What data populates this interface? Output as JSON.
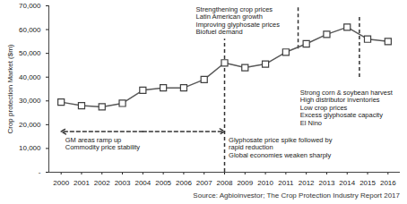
{
  "chart_data": {
    "type": "line",
    "y_label": "Crop protection Market ($m)",
    "caption": "Source: Agbioinvestor; The Crop Protection Industry Report 2017",
    "categories": [
      "2000",
      "2001",
      "2002",
      "2003",
      "2004",
      "2005",
      "2006",
      "2007",
      "2008",
      "2009",
      "2010",
      "2011",
      "2012",
      "2013",
      "2014",
      "2015",
      "2016"
    ],
    "values": [
      29500,
      28000,
      27500,
      29000,
      34500,
      35500,
      35500,
      39000,
      46000,
      44000,
      45500,
      50500,
      54000,
      58000,
      61000,
      56000,
      55000
    ],
    "color": "#595959",
    "marker": "square",
    "ylim": [
      0,
      70000
    ],
    "yticks": [
      {
        "value": 0,
        "label": "-"
      },
      {
        "value": 10000,
        "label": "10,000"
      },
      {
        "value": 20000,
        "label": "20,000"
      },
      {
        "value": 30000,
        "label": "30,000"
      },
      {
        "value": 40000,
        "label": "40,000"
      },
      {
        "value": 50000,
        "label": "50,000"
      },
      {
        "value": 60000,
        "label": "60,000"
      },
      {
        "value": 70000,
        "label": "70,000"
      }
    ],
    "grid": false,
    "annotations": [
      [
        "Strengthening crop prices",
        "Latin American growth",
        "Improving glyphosate prices",
        "Biofuel demand"
      ],
      [
        "GM areas ramp up",
        "Commodity price stability"
      ],
      [
        "Glyphosate price spike followed by",
        "rapid reduction",
        "Global economies weaken sharply"
      ],
      [
        "Strong corn & soybean harvest",
        "High distributor inventories",
        "Low crop prices",
        "Excess glyphosate capacity",
        "El Nino"
      ]
    ]
  }
}
